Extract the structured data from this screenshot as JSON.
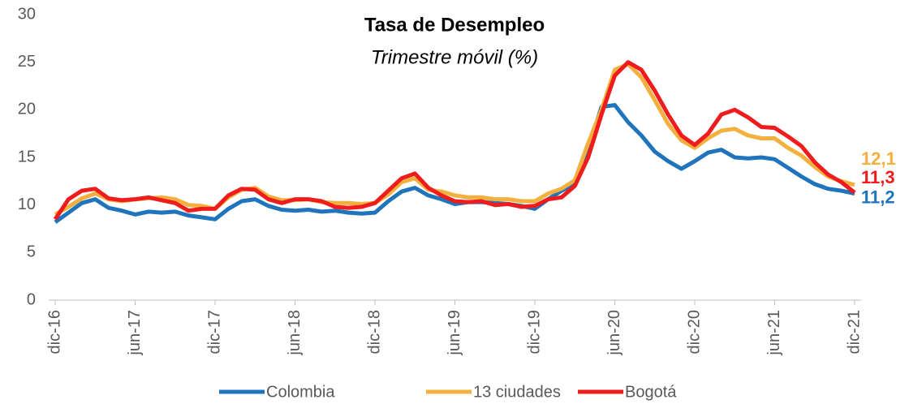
{
  "chart_data": {
    "type": "line",
    "title": "Tasa de Desempleo",
    "subtitle": "Trimestre móvil (%)",
    "categories": [
      "dic-16",
      null,
      null,
      null,
      null,
      null,
      "jun-17",
      null,
      null,
      null,
      null,
      null,
      "dic-17",
      null,
      null,
      null,
      null,
      null,
      "jun-18",
      null,
      null,
      null,
      null,
      null,
      "dic-18",
      null,
      null,
      null,
      null,
      null,
      "jun-19",
      null,
      null,
      null,
      null,
      null,
      "dic-19",
      null,
      null,
      null,
      null,
      null,
      "jun-20",
      null,
      null,
      null,
      null,
      null,
      "dic-20",
      null,
      null,
      null,
      null,
      null,
      "jun-21",
      null,
      null,
      null,
      null,
      null,
      "dic-21"
    ],
    "series": [
      {
        "name": "Colombia",
        "color": "#1f74bb",
        "values": [
          8.2,
          9.2,
          10.2,
          10.6,
          9.7,
          9.4,
          9.0,
          9.3,
          9.2,
          9.3,
          8.9,
          8.7,
          8.5,
          9.6,
          10.4,
          10.6,
          9.9,
          9.5,
          9.4,
          9.5,
          9.3,
          9.4,
          9.2,
          9.1,
          9.2,
          10.4,
          11.4,
          11.8,
          11.0,
          10.6,
          10.1,
          10.3,
          10.3,
          10.2,
          10.1,
          9.9,
          9.6,
          10.6,
          11.5,
          12.2,
          15.8,
          20.3,
          20.5,
          18.7,
          17.3,
          15.6,
          14.6,
          13.8,
          14.6,
          15.5,
          15.8,
          15.0,
          14.9,
          15.0,
          14.8,
          13.9,
          13.0,
          12.2,
          11.7,
          11.5,
          11.2
        ],
        "value_labels": [
          null,
          null,
          null,
          null,
          null,
          null,
          null,
          null,
          null,
          null,
          null,
          null,
          null,
          null,
          null,
          null,
          null,
          null,
          null,
          null,
          null,
          null,
          null,
          null,
          null,
          null,
          null,
          null,
          null,
          null,
          null,
          null,
          null,
          null,
          null,
          null,
          null,
          null,
          null,
          null,
          null,
          null,
          null,
          null,
          null,
          null,
          null,
          null,
          null,
          null,
          null,
          null,
          null,
          null,
          null,
          null,
          null,
          null,
          null,
          null,
          "11,2"
        ]
      },
      {
        "name": "13 ciudades",
        "color": "#f4b03e",
        "values": [
          9.0,
          9.8,
          10.7,
          11.2,
          10.6,
          10.4,
          10.6,
          10.7,
          10.8,
          10.6,
          10.0,
          9.9,
          9.6,
          10.8,
          11.6,
          11.8,
          10.9,
          10.5,
          10.5,
          10.6,
          10.3,
          10.2,
          10.2,
          10.1,
          10.2,
          11.1,
          12.4,
          12.8,
          11.6,
          11.4,
          11.0,
          10.8,
          10.8,
          10.6,
          10.6,
          10.4,
          10.4,
          11.2,
          11.7,
          12.6,
          16.5,
          20.0,
          24.2,
          24.8,
          23.4,
          21.0,
          18.5,
          16.8,
          16.0,
          17.0,
          17.8,
          18.0,
          17.3,
          17.0,
          17.0,
          16.0,
          15.2,
          14.0,
          13.0,
          12.5,
          12.1
        ],
        "value_labels": [
          null,
          null,
          null,
          null,
          null,
          null,
          null,
          null,
          null,
          null,
          null,
          null,
          null,
          null,
          null,
          null,
          null,
          null,
          null,
          null,
          null,
          null,
          null,
          null,
          null,
          null,
          null,
          null,
          null,
          null,
          null,
          null,
          null,
          null,
          null,
          null,
          null,
          null,
          null,
          null,
          null,
          null,
          null,
          null,
          null,
          null,
          null,
          null,
          null,
          null,
          null,
          null,
          null,
          null,
          null,
          null,
          null,
          null,
          null,
          null,
          "12,1"
        ]
      },
      {
        "name": "Bogotá",
        "color": "#ee1c1c",
        "values": [
          8.5,
          10.6,
          11.5,
          11.7,
          10.7,
          10.5,
          10.6,
          10.8,
          10.5,
          10.2,
          9.4,
          9.6,
          9.6,
          11.0,
          11.7,
          11.6,
          10.6,
          10.2,
          10.6,
          10.6,
          10.4,
          9.8,
          9.7,
          9.8,
          10.2,
          11.5,
          12.8,
          13.3,
          11.8,
          11.0,
          10.4,
          10.3,
          10.4,
          10.0,
          10.1,
          9.8,
          9.9,
          10.6,
          10.8,
          12.0,
          15.0,
          19.5,
          23.6,
          25.0,
          24.2,
          22.0,
          19.5,
          17.3,
          16.3,
          17.5,
          19.5,
          20.0,
          19.2,
          18.2,
          18.1,
          17.2,
          16.2,
          14.5,
          13.2,
          12.4,
          11.3
        ],
        "value_labels": [
          null,
          null,
          null,
          null,
          null,
          null,
          null,
          null,
          null,
          null,
          null,
          null,
          null,
          null,
          null,
          null,
          null,
          null,
          null,
          null,
          null,
          null,
          null,
          null,
          null,
          null,
          null,
          null,
          null,
          null,
          null,
          null,
          null,
          null,
          null,
          null,
          null,
          null,
          null,
          null,
          null,
          null,
          null,
          null,
          null,
          null,
          null,
          null,
          null,
          null,
          null,
          null,
          null,
          null,
          null,
          null,
          null,
          null,
          null,
          null,
          "11,3"
        ]
      }
    ],
    "ylim": [
      0,
      30
    ],
    "yticks": [
      0,
      5,
      10,
      15,
      20,
      25,
      30
    ],
    "grid": false,
    "legend": "bottom"
  }
}
